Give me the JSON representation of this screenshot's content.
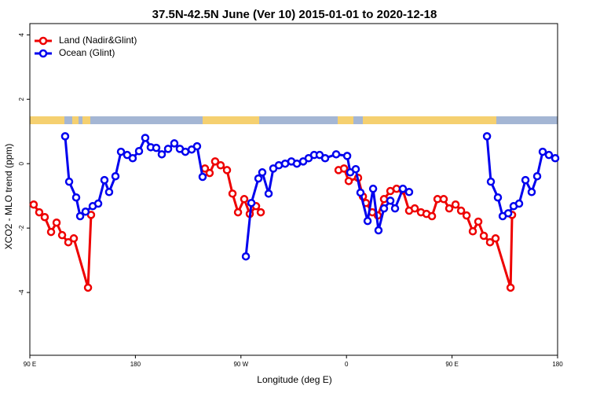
{
  "chart_data": {
    "type": "line",
    "title": "37.5N-42.5N June (Ver 10)   2015-01-01 to 2020-12-18",
    "x_label": "Longitude (deg E)",
    "y_label": "XCO2 - MLO trend (ppm)",
    "xlim": [
      90,
      540
    ],
    "ylim": [
      -5.95,
      4.35
    ],
    "xticks": [
      {
        "value": 90,
        "label": "90 E"
      },
      {
        "value": 180,
        "label": "180"
      },
      {
        "value": 270,
        "label": "90 W"
      },
      {
        "value": 360,
        "label": "0"
      },
      {
        "value": 450,
        "label": "90 E"
      },
      {
        "value": 540,
        "label": "180"
      }
    ],
    "yticks": [
      -4,
      -2,
      0,
      2,
      4
    ],
    "legend": "top-left",
    "series": [
      {
        "name": "Land (Nadir&Glint)",
        "color": "#ee0000",
        "x": [
          93.3,
          98.0,
          102.7,
          108.1,
          112.8,
          117.5,
          122.8,
          127.5,
          139.6,
          142.2,
          null,
          239.3,
          243.3,
          248.0,
          252.7,
          258.1,
          262.8,
          267.5,
          272.8,
          277.5,
          282.9,
          286.9,
          null,
          353.2,
          357.9,
          361.9,
          369.9,
          374.0,
          376.6,
          382.0,
          386.7,
          392.0,
          397.4,
          402.7,
          408.1,
          413.4,
          418.2,
          423.5,
          428.2,
          432.9,
          437.6,
          442.9,
          447.6,
          453.0,
          457.7,
          462.4,
          467.7,
          472.4,
          477.1,
          482.4,
          487.1,
          499.9,
          501.2
        ],
        "values": [
          -1.27,
          -1.51,
          -1.66,
          -2.12,
          -1.83,
          -2.22,
          -2.44,
          -2.32,
          -3.85,
          -1.59,
          null,
          -0.15,
          -0.29,
          0.07,
          -0.05,
          -0.2,
          -0.93,
          -1.51,
          -1.1,
          -1.56,
          -1.32,
          -1.51,
          null,
          -0.2,
          -0.15,
          -0.54,
          -0.44,
          -1.02,
          -1.22,
          -1.51,
          -1.61,
          -1.1,
          -0.85,
          -0.78,
          -0.83,
          -1.46,
          -1.39,
          -1.51,
          -1.56,
          -1.63,
          -1.1,
          -1.1,
          -1.39,
          -1.27,
          -1.46,
          -1.61,
          -2.1,
          -1.8,
          -2.24,
          -2.44,
          -2.32,
          -3.85,
          -1.59
        ]
      },
      {
        "name": "Ocean (Glint)",
        "color": "#0000ee",
        "x": [
          120.1,
          123.5,
          129.5,
          132.9,
          137.5,
          143.6,
          148.3,
          153.6,
          157.6,
          163.0,
          167.7,
          173.0,
          177.7,
          183.1,
          188.4,
          193.1,
          197.8,
          202.5,
          207.9,
          213.2,
          217.9,
          222.6,
          228.0,
          232.6,
          237.3,
          null,
          274.2,
          278.9,
          284.9,
          288.2,
          293.6,
          297.6,
          302.3,
          307.7,
          313.0,
          317.7,
          323.1,
          327.7,
          332.4,
          337.1,
          341.8,
          351.2,
          360.6,
          363.2,
          367.9,
          371.9,
          378.0,
          382.7,
          387.3,
          392.0,
          397.4,
          401.4,
          408.1,
          413.4,
          null,
          479.8,
          483.1,
          489.1,
          493.2,
          497.9,
          502.5,
          507.2,
          512.6,
          517.9,
          522.6,
          527.3,
          532.6,
          538.0
        ],
        "values": [
          0.85,
          -0.56,
          -1.05,
          -1.63,
          -1.49,
          -1.32,
          -1.24,
          -0.51,
          -0.88,
          -0.39,
          0.37,
          0.27,
          0.17,
          0.39,
          0.8,
          0.51,
          0.49,
          0.29,
          0.46,
          0.63,
          0.46,
          0.37,
          0.44,
          0.54,
          -0.41,
          null,
          -2.88,
          -1.22,
          -0.46,
          -0.27,
          -0.93,
          -0.15,
          -0.05,
          0.0,
          0.07,
          0.0,
          0.07,
          0.17,
          0.27,
          0.27,
          0.17,
          0.29,
          0.24,
          -0.27,
          -0.17,
          -0.9,
          -1.78,
          -0.78,
          -2.07,
          -1.39,
          -1.15,
          -1.39,
          -0.78,
          -0.88,
          null,
          0.85,
          -0.56,
          -1.05,
          -1.63,
          -1.54,
          -1.32,
          -1.24,
          -0.51,
          -0.88,
          -0.39,
          0.37,
          0.27,
          0.17
        ]
      }
    ]
  }
}
